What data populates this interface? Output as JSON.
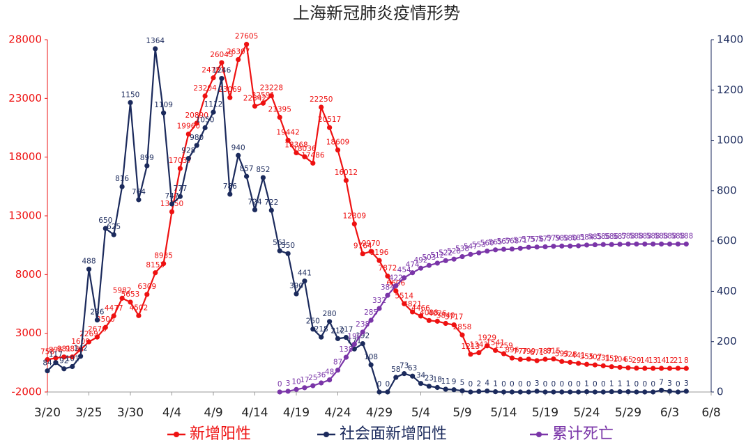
{
  "chart_data": {
    "type": "line",
    "title": "上海新冠肺炎疫情形势",
    "x": [
      "3/20",
      "3/21",
      "3/22",
      "3/23",
      "3/24",
      "3/25",
      "3/26",
      "3/27",
      "3/28",
      "3/29",
      "3/30",
      "3/31",
      "4/1",
      "4/2",
      "4/3",
      "4/4",
      "4/5",
      "4/6",
      "4/7",
      "4/8",
      "4/9",
      "4/10",
      "4/11",
      "4/12",
      "4/13",
      "4/14",
      "4/15",
      "4/16",
      "4/17",
      "4/18",
      "4/19",
      "4/20",
      "4/21",
      "4/22",
      "4/23",
      "4/24",
      "4/25",
      "4/26",
      "4/27",
      "4/28",
      "4/29",
      "4/30",
      "5/1",
      "5/2",
      "5/3",
      "5/4",
      "5/5",
      "5/6",
      "5/7",
      "5/8",
      "5/9",
      "5/10",
      "5/11",
      "5/12",
      "5/13",
      "5/14",
      "5/15",
      "5/16",
      "5/17",
      "5/18",
      "5/19",
      "5/20",
      "5/21",
      "5/22",
      "5/23",
      "5/24",
      "5/25",
      "5/26",
      "5/27",
      "5/28",
      "5/29",
      "5/30",
      "5/31",
      "6/1",
      "6/2",
      "6/3",
      "6/4",
      "6/5"
    ],
    "xticks": [
      "3/20",
      "3/25",
      "3/30",
      "4/4",
      "4/9",
      "4/14",
      "4/19",
      "4/24",
      "4/29",
      "5/4",
      "5/9",
      "5/14",
      "5/19",
      "5/24",
      "5/29",
      "6/3",
      "6/8"
    ],
    "ylim": [
      -2000,
      28000
    ],
    "yticks": [
      -2000,
      3000,
      8000,
      13000,
      18000,
      23000,
      28000
    ],
    "y2lim": [
      0,
      1400
    ],
    "y2ticks": [
      0,
      200,
      400,
      600,
      800,
      1000,
      1200,
      1400
    ],
    "series": [
      {
        "name": "新增阳性",
        "color": "#ee1111",
        "values": [
          758,
          896,
          981,
          983,
          1609,
          2269,
          2676,
          3500,
          4477,
          5982,
          5653,
          4502,
          6309,
          8153,
          8935,
          13350,
          17037,
          19960,
          20890,
          23204,
          24753,
          26045,
          23069,
          26307,
          27605,
          22342,
          22591,
          23228,
          21395,
          19442,
          18368,
          18036,
          17486,
          22250,
          20517,
          18609,
          16012,
          12309,
          9764,
          9970,
          9196,
          7872,
          6606,
          5514,
          4821,
          4466,
          4088,
          4026,
          3840,
          3717,
          2858,
          1213,
          1343,
          1929,
          1541,
          1259,
          896,
          777,
          799,
          671,
          787,
          815,
          593,
          528,
          441,
          355,
          307,
          231,
          152,
          104,
          65,
          29,
          14,
          13,
          14,
          12,
          21,
          8
        ]
      },
      {
        "name": "社会面新增阳性",
        "color": "#1b2a5c",
        "axis": "y2",
        "values": [
          84,
          117,
          92,
          101,
          142,
          488,
          286,
          650,
          625,
          816,
          1150,
          764,
          899,
          1364,
          1109,
          747,
          777,
          928,
          980,
          1050,
          1112,
          1246,
          786,
          940,
          857,
          724,
          852,
          722,
          561,
          550,
          390,
          441,
          250,
          218,
          280,
          212,
          217,
          171,
          192,
          108,
          0,
          0,
          58,
          73,
          63,
          34,
          23,
          18,
          11,
          9,
          5,
          0,
          2,
          4,
          1,
          0,
          0,
          0,
          0,
          3,
          0,
          0,
          0,
          0,
          0,
          1,
          0,
          0,
          1,
          1,
          1,
          0,
          0,
          0,
          7,
          3,
          0,
          3
        ]
      },
      {
        "name": "累计死亡",
        "color": "#7a35a8",
        "axis": "y2",
        "values": [
          null,
          null,
          null,
          null,
          null,
          null,
          null,
          null,
          null,
          null,
          null,
          null,
          null,
          null,
          null,
          null,
          null,
          null,
          null,
          null,
          null,
          null,
          null,
          null,
          null,
          null,
          null,
          null,
          0,
          3,
          10,
          17,
          25,
          36,
          48,
          87,
          138,
          190,
          238,
          285,
          332,
          384,
          422,
          454,
          474,
          492,
          503,
          512,
          522,
          528,
          538,
          547,
          553,
          560,
          565,
          567,
          568,
          571,
          575,
          576,
          577,
          579,
          580,
          580,
          581,
          584,
          585,
          586,
          586,
          587,
          588,
          588,
          588,
          588,
          588,
          588,
          588,
          588
        ]
      }
    ]
  }
}
